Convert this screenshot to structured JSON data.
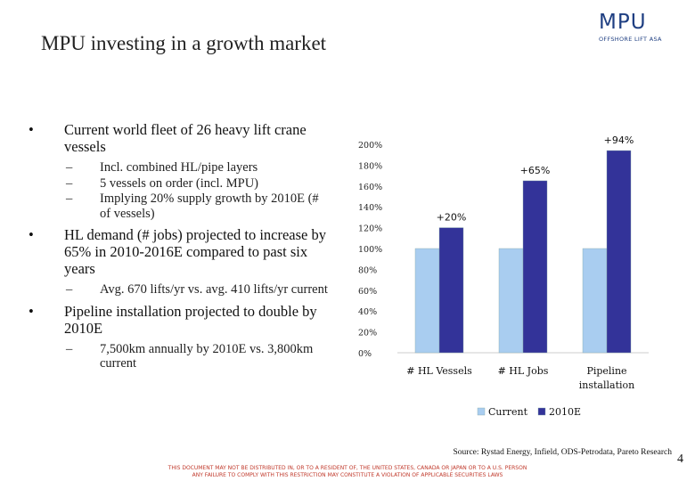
{
  "slide": {
    "title": "MPU investing in a growth market",
    "page_number": "4",
    "source": "Source: Rystad Energy, Infield, ODS-Petrodata, Pareto Research",
    "disclaimer_line1": "THIS DOCUMENT MAY NOT BE DISTRIBUTED IN, OR TO A RESIDENT OF, THE UNITED STATES, CANADA OR JAPAN OR TO A U.S. PERSON",
    "disclaimer_line2": "ANY FAILURE TO COMPLY WITH THIS RESTRICTION MAY CONSTITUTE A VIOLATION OF APPLICABLE SECURITIES LAWS"
  },
  "logo": {
    "text": "MPU",
    "subtext": "OFFSHORE LIFT ASA",
    "color": "#1f3f82"
  },
  "bullets": [
    {
      "text": "Current world fleet of 26 heavy lift crane vessels",
      "subs": [
        "Incl. combined HL/pipe layers",
        "5 vessels on order (incl. MPU)",
        "Implying 20% supply growth by 2010E (# of vessels)"
      ]
    },
    {
      "text": "HL demand (# jobs) projected to increase by 65% in 2010-2016E compared to past six years",
      "subs": [
        "Avg. 670 lifts/yr vs. avg. 410 lifts/yr current"
      ]
    },
    {
      "text": "Pipeline installation projected to double by 2010E",
      "subs": [
        "7,500km annually by 2010E vs. 3,800km current"
      ]
    }
  ],
  "chart_data": {
    "type": "bar",
    "categories": [
      "# HL Vessels",
      "# HL Jobs",
      "Pipeline installation"
    ],
    "series": [
      {
        "name": "Current",
        "values": [
          100,
          100,
          100
        ],
        "color": "#a9cdf0"
      },
      {
        "name": "2010E",
        "values": [
          120,
          165,
          194
        ],
        "color": "#333399"
      }
    ],
    "annotations": [
      "+20%",
      "+65%",
      "+94%"
    ],
    "y_ticks": [
      "0%",
      "20%",
      "40%",
      "60%",
      "80%",
      "100%",
      "120%",
      "140%",
      "160%",
      "180%",
      "200%"
    ],
    "ylim": [
      0,
      200
    ],
    "legend_position": "bottom"
  }
}
